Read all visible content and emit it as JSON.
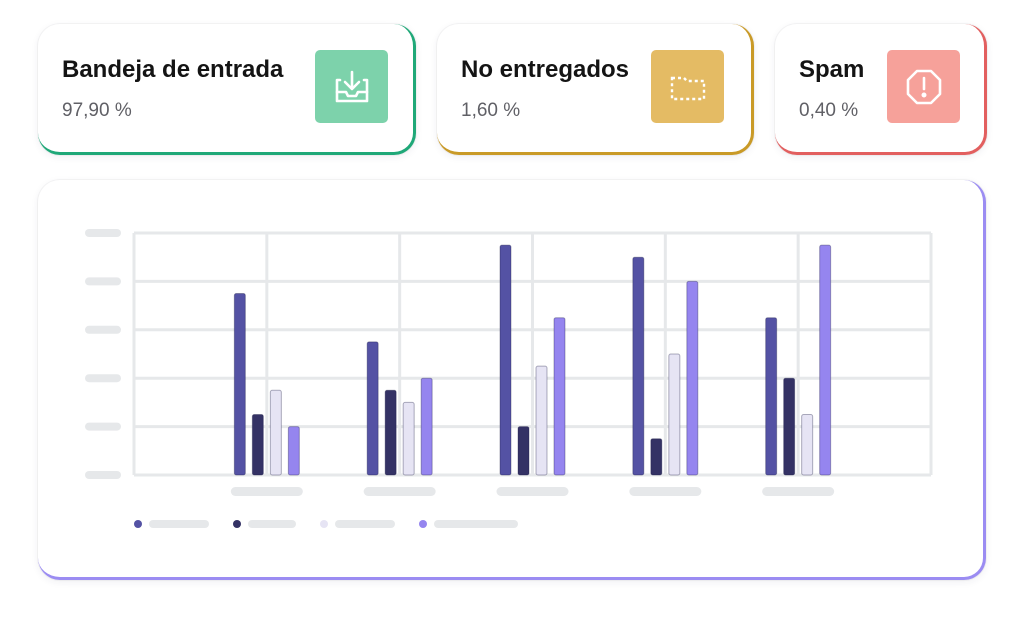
{
  "stats": [
    {
      "title": "Bandeja de entrada",
      "value": "97,90 %",
      "icon": "inbox-download-icon",
      "color": "#1fa878",
      "icon_bg": "#7dd2ab"
    },
    {
      "title": "No entregados",
      "value": "1,60 %",
      "icon": "dashed-folder-icon",
      "color": "#c99a27",
      "icon_bg": "#e4bb64"
    },
    {
      "title": "Spam",
      "value": "0,40 %",
      "icon": "alert-octagon-icon",
      "color": "#e25f5f",
      "icon_bg": "#f6a19a"
    }
  ],
  "chart_data": {
    "type": "bar",
    "title": "",
    "xlabel": "",
    "ylabel": "",
    "ylim": [
      0,
      5
    ],
    "grid": true,
    "legend": "bottom-left",
    "categories": [
      "",
      "",
      "",
      "",
      ""
    ],
    "series": [
      {
        "values": [
          3.75,
          2.75,
          4.75,
          4.5,
          3.25
        ],
        "color": "#5452a4"
      },
      {
        "values": [
          1.25,
          1.75,
          1.0,
          0.75,
          2.0
        ],
        "color": "#343265"
      },
      {
        "values": [
          1.75,
          1.5,
          2.25,
          2.5,
          1.25
        ],
        "color": "#e6e4f4"
      },
      {
        "values": [
          1.0,
          2.0,
          3.25,
          4.0,
          4.75
        ],
        "color": "#9585ef"
      }
    ],
    "card_accent": "#9b8cf2"
  }
}
